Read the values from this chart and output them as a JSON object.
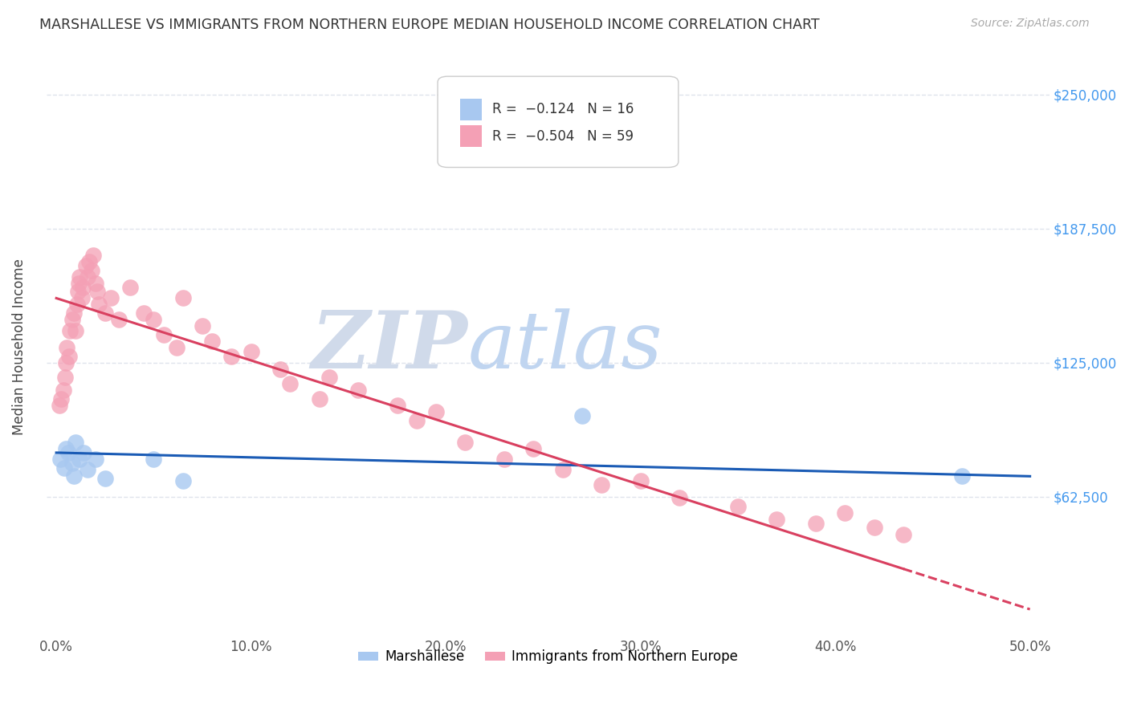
{
  "title": "MARSHALLESE VS IMMIGRANTS FROM NORTHERN EUROPE MEDIAN HOUSEHOLD INCOME CORRELATION CHART",
  "source": "Source: ZipAtlas.com",
  "xlabel_ticks": [
    "0.0%",
    "10.0%",
    "20.0%",
    "30.0%",
    "40.0%",
    "50.0%"
  ],
  "xlabel_vals": [
    0,
    10,
    20,
    30,
    40,
    50
  ],
  "ylabel_ticks": [
    "$62,500",
    "$125,000",
    "$187,500",
    "$250,000"
  ],
  "ylabel_vals": [
    62500,
    125000,
    187500,
    250000
  ],
  "xlim": [
    -0.5,
    51
  ],
  "ylim": [
    0,
    265000
  ],
  "blue_color": "#a8c8f0",
  "pink_color": "#f4a0b5",
  "blue_line_color": "#1a5bb5",
  "pink_line_color": "#d94060",
  "watermark_zip": "ZIP",
  "watermark_atlas": "atlas",
  "watermark_color_zip": "#d0daea",
  "watermark_color_atlas": "#c0d5f0",
  "blue_scatter_x": [
    0.2,
    0.4,
    0.5,
    0.6,
    0.8,
    0.9,
    1.0,
    1.2,
    1.4,
    1.6,
    2.0,
    2.5,
    5.0,
    6.5,
    27.0,
    46.5
  ],
  "blue_scatter_y": [
    80000,
    76000,
    85000,
    83000,
    78000,
    72000,
    88000,
    80000,
    83000,
    75000,
    80000,
    71000,
    80000,
    70000,
    100000,
    72000
  ],
  "pink_scatter_x": [
    0.15,
    0.25,
    0.35,
    0.45,
    0.5,
    0.55,
    0.65,
    0.7,
    0.8,
    0.9,
    1.0,
    1.05,
    1.1,
    1.15,
    1.2,
    1.3,
    1.35,
    1.5,
    1.6,
    1.7,
    1.8,
    1.9,
    2.0,
    2.1,
    2.2,
    2.5,
    2.8,
    3.2,
    3.8,
    4.5,
    5.0,
    5.5,
    6.2,
    6.5,
    7.5,
    8.0,
    9.0,
    10.0,
    11.5,
    12.0,
    13.5,
    14.0,
    15.5,
    17.5,
    18.5,
    19.5,
    21.0,
    23.0,
    24.5,
    26.0,
    28.0,
    30.0,
    32.0,
    35.0,
    37.0,
    39.0,
    40.5,
    42.0,
    43.5
  ],
  "pink_scatter_y": [
    105000,
    108000,
    112000,
    118000,
    125000,
    132000,
    128000,
    140000,
    145000,
    148000,
    140000,
    152000,
    158000,
    162000,
    165000,
    155000,
    160000,
    170000,
    165000,
    172000,
    168000,
    175000,
    162000,
    158000,
    152000,
    148000,
    155000,
    145000,
    160000,
    148000,
    145000,
    138000,
    132000,
    155000,
    142000,
    135000,
    128000,
    130000,
    122000,
    115000,
    108000,
    118000,
    112000,
    105000,
    98000,
    102000,
    88000,
    80000,
    85000,
    75000,
    68000,
    70000,
    62000,
    58000,
    52000,
    50000,
    55000,
    48000,
    45000
  ],
  "pink_line_x0": 0,
  "pink_line_y0": 155000,
  "pink_line_x1": 50,
  "pink_line_y1": 10000,
  "blue_line_x0": 0,
  "blue_line_y0": 83000,
  "blue_line_x1": 50,
  "blue_line_y1": 72000,
  "background_color": "#ffffff",
  "grid_color": "#d8dde8",
  "fig_width": 14.06,
  "fig_height": 8.92
}
